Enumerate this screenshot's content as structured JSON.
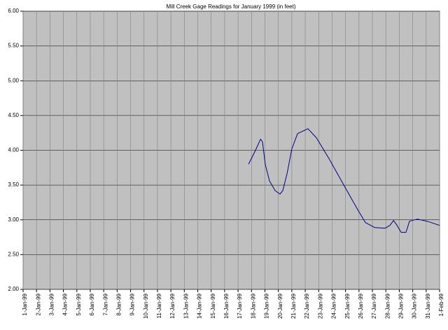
{
  "chart_data": {
    "type": "line",
    "title": "Mill Creek Gage Readings for January 1999 (in feet)",
    "xlim": [
      1,
      32
    ],
    "xticks": [
      {
        "value": 1,
        "label": "1-Jan-99"
      },
      {
        "value": 2,
        "label": "2-Jan-99"
      },
      {
        "value": 3,
        "label": "3-Jan-99"
      },
      {
        "value": 4,
        "label": "4-Jan-99"
      },
      {
        "value": 5,
        "label": "5-Jan-99"
      },
      {
        "value": 6,
        "label": "6-Jan-99"
      },
      {
        "value": 7,
        "label": "7-Jan-99"
      },
      {
        "value": 8,
        "label": "8-Jan-99"
      },
      {
        "value": 9,
        "label": "9-Jan-99"
      },
      {
        "value": 10,
        "label": "10-Jan-99"
      },
      {
        "value": 11,
        "label": "11-Jan-99"
      },
      {
        "value": 12,
        "label": "12-Jan-99"
      },
      {
        "value": 13,
        "label": "13-Jan-99"
      },
      {
        "value": 14,
        "label": "14-Jan-99"
      },
      {
        "value": 15,
        "label": "15-Jan-99"
      },
      {
        "value": 16,
        "label": "16-Jan-99"
      },
      {
        "value": 17,
        "label": "17-Jan-99"
      },
      {
        "value": 18,
        "label": "18-Jan-99"
      },
      {
        "value": 19,
        "label": "19-Jan-99"
      },
      {
        "value": 20,
        "label": "20-Jan-99"
      },
      {
        "value": 21,
        "label": "21-Jan-99"
      },
      {
        "value": 22,
        "label": "22-Jan-99"
      },
      {
        "value": 23,
        "label": "23-Jan-99"
      },
      {
        "value": 24,
        "label": "24-Jan-99"
      },
      {
        "value": 25,
        "label": "25-Jan-99"
      },
      {
        "value": 26,
        "label": "26-Jan-99"
      },
      {
        "value": 27,
        "label": "27-Jan-99"
      },
      {
        "value": 28,
        "label": "28-Jan-99"
      },
      {
        "value": 29,
        "label": "29-Jan-99"
      },
      {
        "value": 30,
        "label": "30-Jan-99"
      },
      {
        "value": 31,
        "label": "31-Jan-99"
      },
      {
        "value": 32,
        "label": "1-Feb-99"
      }
    ],
    "ylim": [
      2,
      6
    ],
    "yticks": [
      {
        "value": 2,
        "label": "2.00"
      },
      {
        "value": 2.5,
        "label": "2.50"
      },
      {
        "value": 3,
        "label": "3.00"
      },
      {
        "value": 3.5,
        "label": "3.50"
      },
      {
        "value": 4,
        "label": "4.00"
      },
      {
        "value": 4.5,
        "label": "4.50"
      },
      {
        "value": 5,
        "label": "5.00"
      },
      {
        "value": 5.5,
        "label": "5.50"
      },
      {
        "value": 6,
        "label": "6.00"
      }
    ],
    "grid": true,
    "plot_color": "#c0c0c0",
    "x": [
      17.78,
      18.3,
      18.67,
      18.82,
      19.03,
      19.34,
      19.76,
      20.12,
      20.33,
      20.65,
      21.0,
      21.43,
      22.2,
      22.83,
      23.77,
      24.81,
      25.86,
      26.48,
      27.16,
      27.94,
      28.3,
      28.57,
      28.83,
      29.14,
      29.5,
      29.76,
      30.34,
      31.07,
      32.0
    ],
    "series": [
      {
        "color": "#000080",
        "values": [
          3.8,
          4.0,
          4.16,
          4.12,
          3.79,
          3.56,
          3.42,
          3.37,
          3.42,
          3.67,
          4.02,
          4.24,
          4.31,
          4.18,
          3.88,
          3.52,
          3.16,
          2.96,
          2.89,
          2.88,
          2.92,
          2.99,
          2.92,
          2.82,
          2.82,
          2.98,
          3.01,
          2.98,
          2.92
        ]
      }
    ]
  }
}
